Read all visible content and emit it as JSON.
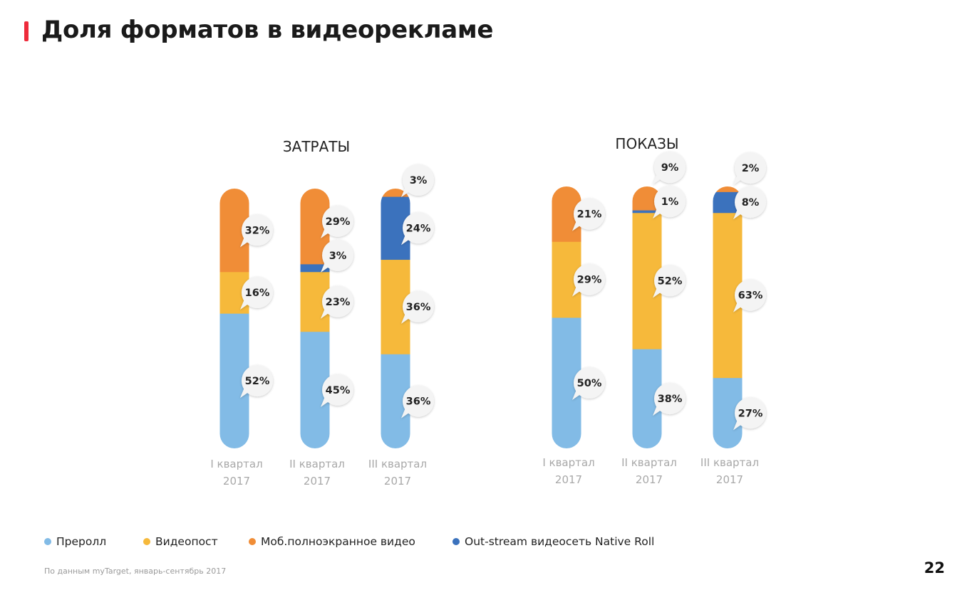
{
  "page": {
    "title": "Доля форматов в видеорекламе",
    "source": "По данным myTarget, январь-сентябрь 2017",
    "page_number": "22"
  },
  "legend": [
    {
      "label": "Преролл",
      "color": "#82bbe6"
    },
    {
      "label": "Видеопост",
      "color": "#f6b93b"
    },
    {
      "label": "Моб.полноэкранное видео",
      "color": "#f08d37"
    },
    {
      "label": "Out-stream видеосеть Native Roll",
      "color": "#3b72bd"
    }
  ],
  "chart_data": [
    {
      "type": "bar",
      "stacked": true,
      "title": "ЗАТРАТЫ",
      "categories": [
        "I квартал 2017",
        "II квартал 2017",
        "III квартал 2017"
      ],
      "series": [
        {
          "name": "Преролл",
          "color": "#82bbe6",
          "values": [
            52,
            45,
            36
          ],
          "labels": [
            "52%",
            "45%",
            "36%"
          ]
        },
        {
          "name": "Видеопост",
          "color": "#f6b93b",
          "values": [
            16,
            23,
            36
          ],
          "labels": [
            "16%",
            "23%",
            "36%"
          ]
        },
        {
          "name": "Out-stream видеосеть Native Roll",
          "color": "#3b72bd",
          "values": [
            0,
            3,
            24
          ],
          "labels": [
            null,
            "3%",
            "24%"
          ]
        },
        {
          "name": "Моб.полноэкранное видео",
          "color": "#f08d37",
          "values": [
            32,
            29,
            3
          ],
          "labels": [
            "32%",
            "29%",
            "3%"
          ]
        }
      ],
      "ylim": [
        0,
        100
      ]
    },
    {
      "type": "bar",
      "stacked": true,
      "title": "ПОКАЗЫ",
      "categories": [
        "I квартал 2017",
        "II квартал 2017",
        "III квартал 2017"
      ],
      "series": [
        {
          "name": "Преролл",
          "color": "#82bbe6",
          "values": [
            50,
            38,
            27
          ],
          "labels": [
            "50%",
            "38%",
            "27%"
          ]
        },
        {
          "name": "Видеопост",
          "color": "#f6b93b",
          "values": [
            29,
            52,
            63
          ],
          "labels": [
            "29%",
            "52%",
            "63%"
          ]
        },
        {
          "name": "Out-stream видеосеть Native Roll",
          "color": "#3b72bd",
          "values": [
            0,
            1,
            8
          ],
          "labels": [
            null,
            "1%",
            "8%"
          ]
        },
        {
          "name": "Моб.полноэкранное видео",
          "color": "#f08d37",
          "values": [
            21,
            9,
            2
          ],
          "labels": [
            "21%",
            "9%",
            "2%"
          ]
        }
      ],
      "ylim": [
        0,
        100
      ]
    }
  ]
}
